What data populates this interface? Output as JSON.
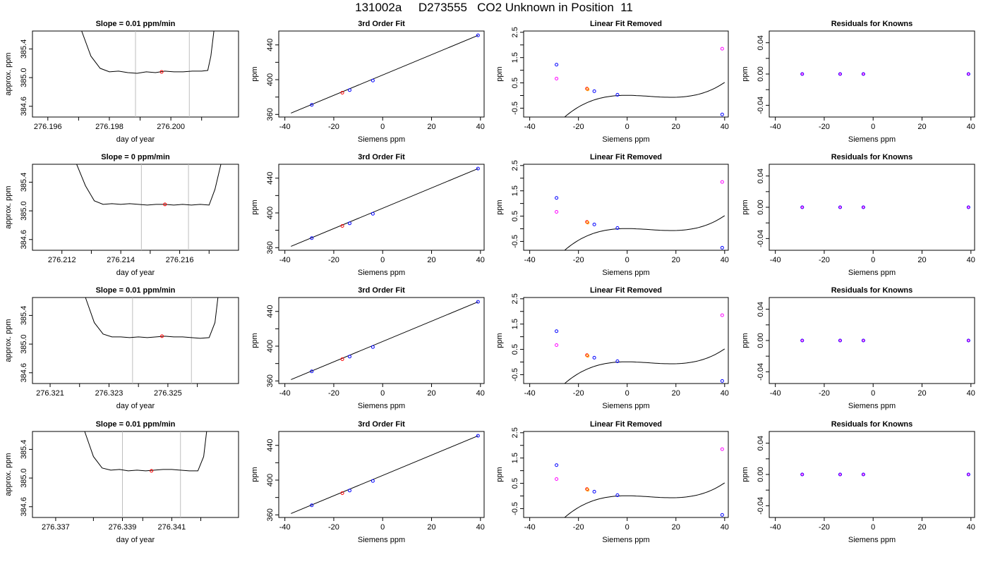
{
  "page_title": "131002a     D273555   CO2 Unknown in Position  11",
  "colors": {
    "known": "#0000ff",
    "unknown": "#ff0000",
    "unknown_lin": "#ff00ff",
    "line": "#000000",
    "vline": "#bebebe"
  },
  "chart_data": [
    {
      "type": "line",
      "title": "Slope =  0.01  ppm/min",
      "xlabel": "day of year",
      "ylabel": "approx. ppm",
      "xlim": [
        276.1955,
        276.2022
      ],
      "ylim": [
        384.45,
        385.65
      ],
      "xticks": [
        276.196,
        276.198,
        276.2
      ],
      "xticklabels": [
        "276.196",
        "276.198",
        "276.200"
      ],
      "xminor": [
        276.197,
        276.199,
        276.201
      ],
      "yticks": [
        384.6,
        385.0,
        385.4
      ],
      "yticklabels": [
        "384.6",
        "385.0",
        "385.4"
      ],
      "trace_x": [
        276.1971,
        276.1974,
        276.1977,
        276.198,
        276.1983,
        276.1986,
        276.1989,
        276.1992,
        276.1995,
        276.1998,
        276.2001,
        276.2004,
        276.2007,
        276.201,
        276.2012,
        276.2013,
        276.2014
      ],
      "trace_y": [
        385.65,
        385.3,
        385.13,
        385.08,
        385.09,
        385.07,
        385.06,
        385.08,
        385.07,
        385.09,
        385.08,
        385.08,
        385.09,
        385.09,
        385.1,
        385.3,
        385.65
      ],
      "window": [
        276.19885,
        276.2006
      ],
      "point": [
        276.1997,
        385.08
      ]
    },
    {
      "type": "line",
      "title": "Slope =  0  ppm/min",
      "xlabel": "day of year",
      "ylabel": "approx. ppm",
      "xlim": [
        276.211,
        276.218
      ],
      "ylim": [
        384.45,
        385.65
      ],
      "xticks": [
        276.212,
        276.214,
        276.216
      ],
      "xticklabels": [
        "276.212",
        "276.214",
        "276.216"
      ],
      "xminor": [
        276.213,
        276.215,
        276.217
      ],
      "yticks": [
        384.6,
        385.0,
        385.4
      ],
      "yticklabels": [
        "384.6",
        "385.0",
        "385.4"
      ],
      "trace_x": [
        276.2125,
        276.2128,
        276.2131,
        276.2134,
        276.2137,
        276.214,
        276.2143,
        276.2146,
        276.2149,
        276.2152,
        276.2155,
        276.2158,
        276.2161,
        276.2164,
        276.2167,
        276.217,
        276.2172,
        276.2174
      ],
      "trace_y": [
        385.65,
        385.35,
        385.14,
        385.09,
        385.1,
        385.09,
        385.1,
        385.09,
        385.08,
        385.09,
        385.09,
        385.08,
        385.09,
        385.08,
        385.09,
        385.08,
        385.3,
        385.65
      ],
      "window": [
        276.2147,
        276.2163
      ],
      "point": [
        276.2155,
        385.09
      ]
    },
    {
      "type": "line",
      "title": "Slope =  0.01  ppm/min",
      "xlabel": "day of year",
      "ylabel": "approx. ppm",
      "xlim": [
        276.3204,
        276.3274
      ],
      "ylim": [
        384.45,
        385.65
      ],
      "xticks": [
        276.321,
        276.323,
        276.325
      ],
      "xticklabels": [
        "276.321",
        "276.323",
        "276.325"
      ],
      "xminor": [
        276.322,
        276.324,
        276.326
      ],
      "yticks": [
        384.6,
        385.0,
        385.4
      ],
      "yticklabels": [
        "384.6",
        "385.0",
        "385.4"
      ],
      "trace_x": [
        276.3222,
        276.3225,
        276.3228,
        276.3231,
        276.3234,
        276.3237,
        276.324,
        276.3243,
        276.3246,
        276.3249,
        276.3252,
        276.3255,
        276.3258,
        276.3261,
        276.3264,
        276.3266,
        276.3267
      ],
      "trace_y": [
        385.65,
        385.3,
        385.14,
        385.1,
        385.1,
        385.09,
        385.1,
        385.09,
        385.1,
        385.11,
        385.1,
        385.1,
        385.09,
        385.08,
        385.09,
        385.3,
        385.65
      ],
      "window": [
        276.3238,
        276.3258
      ],
      "point": [
        276.3248,
        385.11
      ]
    },
    {
      "type": "line",
      "title": "Slope =  0.01  ppm/min",
      "xlabel": "day of year",
      "ylabel": "approx. ppm",
      "xlim": [
        276.3362,
        276.3433
      ],
      "ylim": [
        384.45,
        385.65
      ],
      "xticks": [
        276.337,
        276.3393,
        276.341
      ],
      "xticklabels": [
        "276.337",
        "276.339",
        "276.341"
      ],
      "xminor": [
        276.3383,
        276.34,
        276.342
      ],
      "yticks": [
        384.6,
        385.0,
        385.4
      ],
      "yticklabels": [
        "384.6",
        "385.0",
        "385.4"
      ],
      "trace_x": [
        276.338,
        276.3383,
        276.3386,
        276.3389,
        276.3392,
        276.3395,
        276.3398,
        276.3401,
        276.3404,
        276.3407,
        276.341,
        276.3413,
        276.3416,
        276.3419,
        276.3421,
        276.3422
      ],
      "trace_y": [
        385.65,
        385.3,
        385.14,
        385.11,
        385.12,
        385.1,
        385.11,
        385.1,
        385.11,
        385.12,
        385.12,
        385.11,
        385.1,
        385.1,
        385.3,
        385.65
      ],
      "window": [
        276.3393,
        276.3413
      ],
      "point": [
        276.3403,
        385.1
      ]
    },
    {
      "type": "scatter",
      "title": "3rd Order Fit",
      "xlabel": "Siemens ppm",
      "ylabel": "ppm",
      "xlim": [
        -42.5,
        41.5
      ],
      "ylim": [
        357,
        456
      ],
      "xticks": [
        -40,
        -20,
        0,
        20,
        40
      ],
      "xticklabels": [
        "-40",
        "-20",
        "0",
        "20",
        "40"
      ],
      "yticks": [
        360,
        400,
        440
      ],
      "yticklabels": [
        "360",
        "400",
        "440"
      ],
      "yminor": [
        380,
        420
      ],
      "fit_line": {
        "x": [
          -37.5,
          39
        ],
        "y": [
          361.5,
          451
        ]
      },
      "knowns": {
        "x": [
          -29,
          -13.5,
          -4,
          39
        ],
        "y": [
          371,
          388,
          399,
          451
        ]
      },
      "unknown": {
        "x": [
          -16.5,
          385
        ]
      }
    },
    {
      "type": "scatter",
      "title": "3rd Order Fit",
      "xlabel": "Siemens ppm",
      "ylabel": "ppm",
      "xlim": [
        -42.5,
        41.5
      ],
      "ylim": [
        357,
        456
      ],
      "xticks": [
        -40,
        -20,
        0,
        20,
        40
      ],
      "xticklabels": [
        "-40",
        "-20",
        "0",
        "20",
        "40"
      ],
      "yticks": [
        360,
        400,
        440
      ],
      "yticklabels": [
        "360",
        "400",
        "440"
      ],
      "yminor": [
        380,
        420
      ],
      "fit_line": {
        "x": [
          -37.5,
          39
        ],
        "y": [
          361.5,
          451
        ]
      },
      "knowns": {
        "x": [
          -29,
          -13.5,
          -4,
          39
        ],
        "y": [
          371,
          388,
          399,
          451
        ]
      },
      "unknown": {
        "x": [
          -16.5,
          385
        ]
      }
    },
    {
      "type": "scatter",
      "title": "3rd Order Fit",
      "xlabel": "Siemens ppm",
      "ylabel": "ppm",
      "xlim": [
        -42.5,
        41.5
      ],
      "ylim": [
        357,
        456
      ],
      "xticks": [
        -40,
        -20,
        0,
        20,
        40
      ],
      "xticklabels": [
        "-40",
        "-20",
        "0",
        "20",
        "40"
      ],
      "yticks": [
        360,
        400,
        440
      ],
      "yticklabels": [
        "360",
        "400",
        "440"
      ],
      "yminor": [
        380,
        420
      ],
      "fit_line": {
        "x": [
          -37.5,
          39
        ],
        "y": [
          361.5,
          451
        ]
      },
      "knowns": {
        "x": [
          -29,
          -13.5,
          -4,
          39
        ],
        "y": [
          371,
          388,
          399,
          451
        ]
      },
      "unknown": {
        "x": [
          -16.5,
          385
        ]
      }
    },
    {
      "type": "scatter",
      "title": "3rd Order Fit",
      "xlabel": "Siemens ppm",
      "ylabel": "ppm",
      "xlim": [
        -42.5,
        41.5
      ],
      "ylim": [
        357,
        456
      ],
      "xticks": [
        -40,
        -20,
        0,
        20,
        40
      ],
      "xticklabels": [
        "-40",
        "-20",
        "0",
        "20",
        "40"
      ],
      "yticks": [
        360,
        400,
        440
      ],
      "yticklabels": [
        "360",
        "400",
        "440"
      ],
      "yminor": [
        380,
        420
      ],
      "fit_line": {
        "x": [
          -37.5,
          39
        ],
        "y": [
          361.5,
          451
        ]
      },
      "knowns": {
        "x": [
          -29,
          -13.5,
          -4,
          39
        ],
        "y": [
          371,
          388,
          399,
          451
        ]
      },
      "unknown": {
        "x": [
          -16.5,
          385
        ]
      }
    },
    {
      "type": "scatter",
      "title": "Linear Fit Removed",
      "xlabel": "Siemens ppm",
      "ylabel": "ppm",
      "xlim": [
        -42.5,
        41.5
      ],
      "ylim": [
        -0.85,
        2.55
      ],
      "xticks": [
        -40,
        -20,
        0,
        20,
        40
      ],
      "xticklabels": [
        "-40",
        "-20",
        "0",
        "20",
        "40"
      ],
      "yticks": [
        -0.5,
        0.5,
        1.5,
        2.5
      ],
      "yticklabels": [
        "-0.5",
        "0.5",
        "1.5",
        "2.5"
      ],
      "yminor": [
        0,
        1,
        2
      ],
      "curve": {
        "x0": -38.5,
        "x1": 40,
        "coef": [
          0.0076,
          -0.0003105,
          -0.0006725,
          2.5e-05
        ]
      },
      "knowns": {
        "x": [
          -29,
          -13.5,
          -4,
          39
        ],
        "y": [
          1.22,
          0.17,
          0.03,
          -0.75
        ]
      },
      "unknown": {
        "x": [
          -16.5,
          0.27
        ]
      },
      "linear_resid": {
        "x": [
          -29,
          39
        ],
        "y": [
          0.67,
          1.85
        ]
      }
    },
    {
      "type": "scatter",
      "title": "Linear Fit Removed",
      "xlabel": "Siemens ppm",
      "ylabel": "ppm",
      "xlim": [
        -42.5,
        41.5
      ],
      "ylim": [
        -0.85,
        2.55
      ],
      "xticks": [
        -40,
        -20,
        0,
        20,
        40
      ],
      "xticklabels": [
        "-40",
        "-20",
        "0",
        "20",
        "40"
      ],
      "yticks": [
        -0.5,
        0.5,
        1.5,
        2.5
      ],
      "yticklabels": [
        "-0.5",
        "0.5",
        "1.5",
        "2.5"
      ],
      "yminor": [
        0,
        1,
        2
      ],
      "curve": {
        "x0": -38.5,
        "x1": 40,
        "coef": [
          0.0076,
          -0.0003105,
          -0.0006725,
          2.5e-05
        ]
      },
      "knowns": {
        "x": [
          -29,
          -13.5,
          -4,
          39
        ],
        "y": [
          1.22,
          0.17,
          0.03,
          -0.75
        ]
      },
      "unknown": {
        "x": [
          -16.5,
          0.27
        ]
      },
      "linear_resid": {
        "x": [
          -29,
          39
        ],
        "y": [
          0.67,
          1.85
        ]
      }
    },
    {
      "type": "scatter",
      "title": "Linear Fit Removed",
      "xlabel": "Siemens ppm",
      "ylabel": "ppm",
      "xlim": [
        -42.5,
        41.5
      ],
      "ylim": [
        -0.85,
        2.55
      ],
      "xticks": [
        -40,
        -20,
        0,
        20,
        40
      ],
      "xticklabels": [
        "-40",
        "-20",
        "0",
        "20",
        "40"
      ],
      "yticks": [
        -0.5,
        0.5,
        1.5,
        2.5
      ],
      "yticklabels": [
        "-0.5",
        "0.5",
        "1.5",
        "2.5"
      ],
      "yminor": [
        0,
        1,
        2
      ],
      "curve": {
        "x0": -38.5,
        "x1": 40,
        "coef": [
          0.0076,
          -0.0003105,
          -0.0006725,
          2.5e-05
        ]
      },
      "knowns": {
        "x": [
          -29,
          -13.5,
          -4,
          39
        ],
        "y": [
          1.22,
          0.17,
          0.03,
          -0.75
        ]
      },
      "unknown": {
        "x": [
          -16.5,
          0.27
        ]
      },
      "linear_resid": {
        "x": [
          -29,
          39
        ],
        "y": [
          0.67,
          1.85
        ]
      }
    },
    {
      "type": "scatter",
      "title": "Linear Fit Removed",
      "xlabel": "Siemens ppm",
      "ylabel": "ppm",
      "xlim": [
        -42.5,
        41.5
      ],
      "ylim": [
        -0.85,
        2.55
      ],
      "xticks": [
        -40,
        -20,
        0,
        20,
        40
      ],
      "xticklabels": [
        "-40",
        "-20",
        "0",
        "20",
        "40"
      ],
      "yticks": [
        -0.5,
        0.5,
        1.5,
        2.5
      ],
      "yticklabels": [
        "-0.5",
        "0.5",
        "1.5",
        "2.5"
      ],
      "yminor": [
        0,
        1,
        2
      ],
      "curve": {
        "x0": -38.5,
        "x1": 40,
        "coef": [
          0.0076,
          -0.0003105,
          -0.0006725,
          2.5e-05
        ]
      },
      "knowns": {
        "x": [
          -29,
          -13.5,
          -4,
          39
        ],
        "y": [
          1.22,
          0.17,
          0.03,
          -0.75
        ]
      },
      "unknown": {
        "x": [
          -16.5,
          0.27
        ]
      },
      "linear_resid": {
        "x": [
          -29,
          39
        ],
        "y": [
          0.67,
          1.85
        ]
      }
    },
    {
      "type": "scatter",
      "title": "Residuals for Knowns",
      "xlabel": "Siemens ppm",
      "ylabel": "ppm",
      "xlim": [
        -42.5,
        41.5
      ],
      "ylim": [
        -0.055,
        0.055
      ],
      "xticks": [
        -40,
        -20,
        0,
        20,
        40
      ],
      "xticklabels": [
        "-40",
        "-20",
        "0",
        "20",
        "40"
      ],
      "yticks": [
        -0.04,
        0.0,
        0.04
      ],
      "yticklabels": [
        "-0.04",
        "0.00",
        "0.04"
      ],
      "yminor": [
        -0.02,
        0.02
      ],
      "knowns": {
        "x": [
          -29,
          -13.5,
          -4,
          39
        ],
        "y": [
          0,
          0,
          0,
          0
        ]
      }
    },
    {
      "type": "scatter",
      "title": "Residuals for Knowns",
      "xlabel": "Siemens ppm",
      "ylabel": "ppm",
      "xlim": [
        -42.5,
        41.5
      ],
      "ylim": [
        -0.055,
        0.055
      ],
      "xticks": [
        -40,
        -20,
        0,
        20,
        40
      ],
      "xticklabels": [
        "-40",
        "-20",
        "0",
        "20",
        "40"
      ],
      "yticks": [
        -0.04,
        0.0,
        0.04
      ],
      "yticklabels": [
        "-0.04",
        "0.00",
        "0.04"
      ],
      "yminor": [
        -0.02,
        0.02
      ],
      "knowns": {
        "x": [
          -29,
          -13.5,
          -4,
          39
        ],
        "y": [
          0,
          0,
          0,
          0
        ]
      }
    },
    {
      "type": "scatter",
      "title": "Residuals for Knowns",
      "xlabel": "Siemens ppm",
      "ylabel": "ppm",
      "xlim": [
        -42.5,
        41.5
      ],
      "ylim": [
        -0.055,
        0.055
      ],
      "xticks": [
        -40,
        -20,
        0,
        20,
        40
      ],
      "xticklabels": [
        "-40",
        "-20",
        "0",
        "20",
        "40"
      ],
      "yticks": [
        -0.04,
        0.0,
        0.04
      ],
      "yticklabels": [
        "-0.04",
        "0.00",
        "0.04"
      ],
      "yminor": [
        -0.02,
        0.02
      ],
      "knowns": {
        "x": [
          -29,
          -13.5,
          -4,
          39
        ],
        "y": [
          0,
          0,
          0,
          0
        ]
      }
    },
    {
      "type": "scatter",
      "title": "Residuals for Knowns",
      "xlabel": "Siemens ppm",
      "ylabel": "ppm",
      "xlim": [
        -42.5,
        41.5
      ],
      "ylim": [
        -0.055,
        0.055
      ],
      "xticks": [
        -40,
        -20,
        0,
        20,
        40
      ],
      "xticklabels": [
        "-40",
        "-20",
        "0",
        "20",
        "40"
      ],
      "yticks": [
        -0.04,
        0.0,
        0.04
      ],
      "yticklabels": [
        "-0.04",
        "0.00",
        "0.04"
      ],
      "yminor": [
        -0.02,
        0.02
      ],
      "knowns": {
        "x": [
          -29,
          -13.5,
          -4,
          39
        ],
        "y": [
          0,
          0,
          0,
          0
        ]
      }
    }
  ]
}
